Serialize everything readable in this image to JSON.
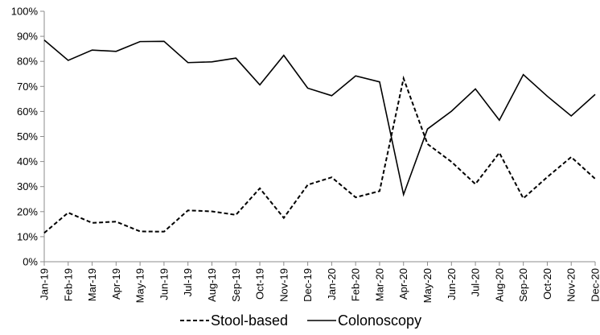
{
  "chart_data": {
    "type": "line",
    "title": "",
    "xlabel": "",
    "ylabel": "",
    "ylim": [
      0,
      100
    ],
    "y_ticks": [
      "0%",
      "10%",
      "20%",
      "30%",
      "40%",
      "50%",
      "60%",
      "70%",
      "80%",
      "90%",
      "100%"
    ],
    "y_tick_values": [
      0,
      10,
      20,
      30,
      40,
      50,
      60,
      70,
      80,
      90,
      100
    ],
    "grid": false,
    "legend_position": "bottom",
    "categories": [
      "Jan-19",
      "Feb-19",
      "Mar-19",
      "Apr-19",
      "May-19",
      "Jun-19",
      "Jul-19",
      "Aug-19",
      "Sep-19",
      "Oct-19",
      "Nov-19",
      "Dec-19",
      "Jan-20",
      "Feb-20",
      "Mar-20",
      "Apr-20",
      "May-20",
      "Jun-20",
      "Jul-20",
      "Aug-20",
      "Sep-20",
      "Oct-20",
      "Nov-20",
      "Dec-20"
    ],
    "series": [
      {
        "name": "Stool-based",
        "style": "dashed",
        "color": "#000000",
        "values": [
          11.5,
          19.6,
          15.5,
          16.0,
          12.1,
          12.0,
          20.5,
          20.1,
          18.7,
          29.3,
          17.5,
          30.7,
          33.7,
          25.7,
          28.2,
          73.2,
          47.0,
          39.9,
          31.0,
          43.5,
          25.3,
          33.8,
          41.8,
          33.1
        ]
      },
      {
        "name": "Colonoscopy",
        "style": "solid",
        "color": "#000000",
        "values": [
          88.5,
          80.4,
          84.5,
          84.0,
          87.9,
          88.0,
          79.5,
          79.8,
          81.3,
          70.6,
          82.4,
          69.3,
          66.3,
          74.2,
          71.8,
          26.8,
          53.0,
          60.1,
          69.0,
          56.5,
          74.7,
          66.1,
          58.2,
          66.8
        ]
      }
    ]
  }
}
